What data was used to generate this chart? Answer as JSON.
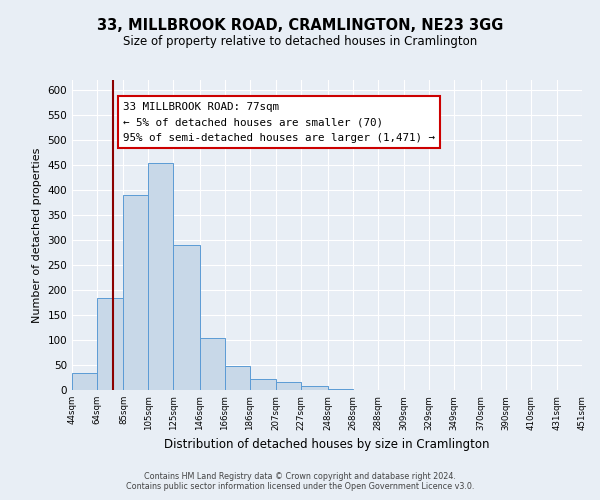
{
  "title": "33, MILLBROOK ROAD, CRAMLINGTON, NE23 3GG",
  "subtitle": "Size of property relative to detached houses in Cramlington",
  "xlabel": "Distribution of detached houses by size in Cramlington",
  "ylabel": "Number of detached properties",
  "footnote1": "Contains HM Land Registry data © Crown copyright and database right 2024.",
  "footnote2": "Contains public sector information licensed under the Open Government Licence v3.0.",
  "bar_edges": [
    44,
    64,
    85,
    105,
    125,
    146,
    166,
    186,
    207,
    227,
    248,
    268,
    288,
    309,
    329,
    349,
    370,
    390,
    410,
    431,
    451
  ],
  "bar_heights": [
    35,
    185,
    390,
    455,
    290,
    105,
    48,
    22,
    16,
    8,
    2,
    1,
    1,
    1,
    1,
    1,
    1,
    1,
    1,
    1
  ],
  "bar_color": "#c8d8e8",
  "bar_edge_color": "#5b9bd5",
  "vertical_line_x": 77,
  "vertical_line_color": "#8b0000",
  "annotation_line1": "33 MILLBROOK ROAD: 77sqm",
  "annotation_line2": "← 5% of detached houses are smaller (70)",
  "annotation_line3": "95% of semi-detached houses are larger (1,471) →",
  "ylim": [
    0,
    620
  ],
  "yticks": [
    0,
    50,
    100,
    150,
    200,
    250,
    300,
    350,
    400,
    450,
    500,
    550,
    600
  ],
  "background_color": "#e8eef5",
  "plot_background_color": "#e8eef5",
  "grid_color": "#ffffff",
  "title_fontsize": 10.5,
  "subtitle_fontsize": 8.5,
  "xlabel_fontsize": 8.5,
  "ylabel_fontsize": 8.0
}
